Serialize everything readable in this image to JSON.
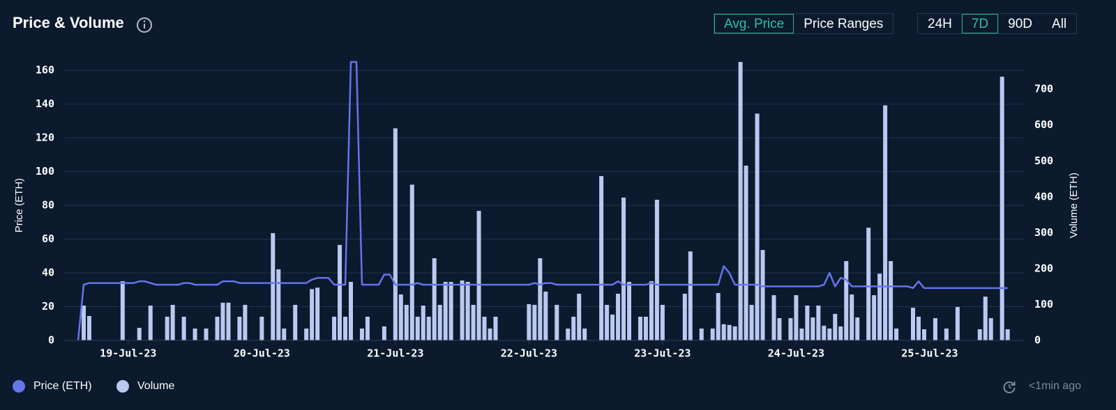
{
  "header": {
    "title": "Price & Volume",
    "tabs": [
      "Avg. Price",
      "Price Ranges"
    ],
    "active_tab": 0,
    "ranges": [
      "24H",
      "7D",
      "90D",
      "All"
    ],
    "active_range": 1
  },
  "chart_data": {
    "type": "combo",
    "y_label": "Price (ETH)",
    "y2_label": "Volume (ETH)",
    "categories": [
      null,
      null,
      null,
      null,
      null,
      null,
      null,
      null,
      null,
      "19-Jul-23",
      null,
      null,
      null,
      null,
      null,
      null,
      null,
      null,
      null,
      null,
      null,
      null,
      null,
      null,
      null,
      null,
      null,
      null,
      null,
      null,
      null,
      null,
      null,
      "20-Jul-23",
      null,
      null,
      null,
      null,
      null,
      null,
      null,
      null,
      null,
      null,
      null,
      null,
      null,
      null,
      null,
      null,
      null,
      null,
      null,
      null,
      null,
      null,
      null,
      "21-Jul-23",
      null,
      null,
      null,
      null,
      null,
      null,
      null,
      null,
      null,
      null,
      null,
      null,
      null,
      null,
      null,
      null,
      null,
      null,
      null,
      null,
      null,
      null,
      null,
      "22-Jul-23",
      null,
      null,
      null,
      null,
      null,
      null,
      null,
      null,
      null,
      null,
      null,
      null,
      null,
      null,
      null,
      null,
      null,
      null,
      null,
      null,
      null,
      null,
      null,
      "23-Jul-23",
      null,
      null,
      null,
      null,
      null,
      null,
      null,
      null,
      null,
      null,
      null,
      null,
      null,
      null,
      null,
      null,
      null,
      null,
      null,
      null,
      null,
      null,
      null,
      "24-Jul-23",
      null,
      null,
      null,
      null,
      null,
      null,
      null,
      null,
      null,
      null,
      null,
      null,
      null,
      null,
      null,
      null,
      null,
      null,
      null,
      null,
      null,
      null,
      null,
      "25-Jul-23",
      null,
      null,
      null,
      null,
      null,
      null,
      null,
      null,
      null,
      null,
      null,
      null,
      null,
      null
    ],
    "series": [
      {
        "name": "Price (ETH)",
        "type": "line",
        "color": "#6675ec",
        "values": [
          0,
          33,
          34,
          34,
          34,
          34,
          34,
          34,
          34,
          34,
          34,
          35,
          35,
          34,
          33,
          33,
          33,
          33,
          33,
          34,
          34,
          33,
          33,
          33,
          33,
          33,
          35,
          35,
          35,
          34,
          34,
          34,
          34,
          34,
          34,
          34,
          34,
          34,
          34,
          34,
          34,
          34,
          36,
          37,
          37,
          37,
          33,
          33,
          33,
          165,
          165,
          33,
          33,
          33,
          33,
          39,
          39,
          33,
          33,
          33,
          33,
          34,
          33,
          33,
          33,
          33,
          33,
          33,
          33,
          33,
          33,
          33,
          33,
          33,
          33,
          33,
          33,
          33,
          33,
          33,
          33,
          33,
          34,
          33,
          34,
          34,
          33,
          33,
          33,
          33,
          33,
          33,
          33,
          33,
          33,
          33,
          33,
          35,
          33,
          33,
          33,
          33,
          33,
          34,
          33,
          33,
          33,
          33,
          33,
          33,
          33,
          33,
          33,
          33,
          33,
          33,
          44,
          40,
          33,
          33,
          33,
          33,
          33,
          32,
          32,
          32,
          32,
          32,
          32,
          32,
          32,
          32,
          32,
          32,
          33,
          40,
          32,
          37,
          36,
          32,
          32,
          32,
          32,
          32,
          32,
          32,
          32,
          32,
          32,
          32,
          31,
          35,
          31,
          31,
          31,
          31,
          31,
          31,
          31,
          31,
          31,
          31,
          31,
          31,
          31,
          31,
          31,
          31
        ]
      },
      {
        "name": "Volume",
        "type": "bar",
        "axis": "y2",
        "color": "#b9c9ef",
        "values": [
          0,
          97,
          68,
          0,
          0,
          0,
          0,
          0,
          165,
          0,
          0,
          35,
          0,
          97,
          0,
          0,
          66,
          99,
          0,
          66,
          0,
          33,
          0,
          33,
          0,
          66,
          105,
          105,
          0,
          66,
          99,
          0,
          0,
          66,
          0,
          299,
          198,
          33,
          0,
          99,
          0,
          33,
          143,
          147,
          0,
          0,
          66,
          266,
          66,
          163,
          0,
          33,
          66,
          0,
          0,
          39,
          0,
          591,
          128,
          99,
          434,
          66,
          97,
          66,
          229,
          99,
          163,
          163,
          0,
          167,
          163,
          99,
          361,
          66,
          33,
          66,
          0,
          0,
          0,
          0,
          0,
          101,
          99,
          229,
          136,
          0,
          99,
          0,
          33,
          66,
          130,
          33,
          0,
          0,
          458,
          99,
          72,
          130,
          398,
          163,
          0,
          66,
          66,
          165,
          392,
          99,
          0,
          0,
          0,
          130,
          248,
          0,
          33,
          0,
          33,
          132,
          45,
          43,
          39,
          776,
          487,
          99,
          632,
          252,
          0,
          126,
          62,
          0,
          62,
          126,
          33,
          97,
          64,
          97,
          41,
          33,
          74,
          39,
          221,
          128,
          64,
          0,
          314,
          126,
          186,
          655,
          221,
          33,
          0,
          0,
          91,
          66,
          31,
          0,
          62,
          0,
          33,
          0,
          93,
          0,
          0,
          0,
          31,
          122,
          62,
          0,
          735,
          31
        ]
      }
    ],
    "ylim": [
      0,
      165
    ],
    "yticks": [
      0,
      20,
      40,
      60,
      80,
      100,
      120,
      140,
      160
    ],
    "y2lim": [
      0,
      776
    ],
    "y2ticks": [
      0,
      100,
      200,
      300,
      400,
      500,
      600,
      700
    ],
    "grid": true
  },
  "footer": {
    "updated": "<1min ago"
  }
}
